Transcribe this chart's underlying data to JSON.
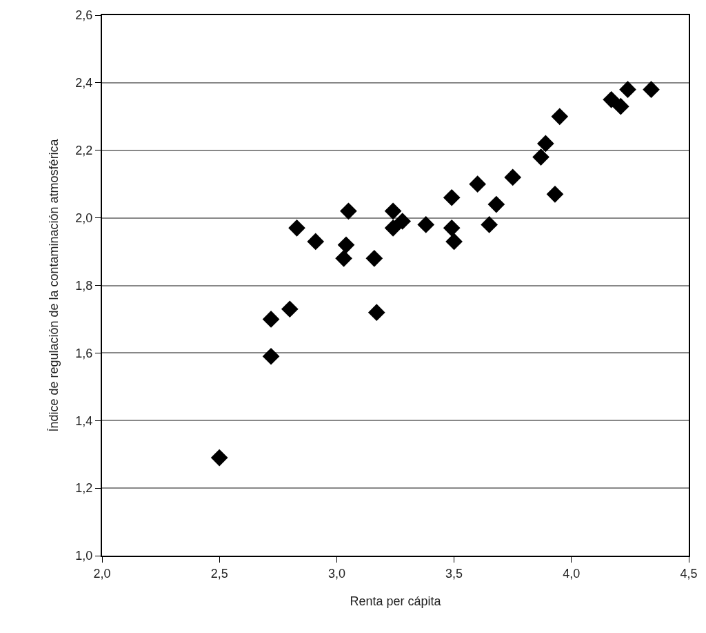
{
  "chart_data": {
    "type": "scatter",
    "xlabel": "Renta per cápita",
    "ylabel": "Índice de regulación de la contaminación atmosférica",
    "x": [
      2.5,
      2.72,
      2.72,
      2.8,
      2.83,
      2.91,
      3.03,
      3.04,
      3.05,
      3.16,
      3.17,
      3.24,
      3.24,
      3.28,
      3.38,
      3.49,
      3.49,
      3.5,
      3.6,
      3.65,
      3.68,
      3.75,
      3.87,
      3.89,
      3.93,
      3.95,
      4.17,
      4.21,
      4.24,
      4.34
    ],
    "values": [
      1.29,
      1.7,
      1.59,
      1.73,
      1.97,
      1.93,
      1.88,
      1.92,
      2.02,
      1.88,
      1.72,
      2.02,
      1.97,
      1.99,
      1.98,
      2.06,
      1.97,
      1.93,
      2.1,
      1.98,
      2.04,
      2.12,
      2.18,
      2.22,
      2.07,
      2.3,
      2.35,
      2.33,
      2.38,
      2.38
    ],
    "color": "#000000",
    "marker": "diamond",
    "xlim": [
      2.0,
      4.5
    ],
    "xticks": [
      {
        "value": 2.0,
        "label": "2,0"
      },
      {
        "value": 2.5,
        "label": "2,5"
      },
      {
        "value": 3.0,
        "label": "3,0"
      },
      {
        "value": 3.5,
        "label": "3,5"
      },
      {
        "value": 4.0,
        "label": "4,0"
      },
      {
        "value": 4.5,
        "label": "4,5"
      }
    ],
    "ylim": [
      1.0,
      2.6
    ],
    "yticks": [
      {
        "value": 1.0,
        "label": "1,0"
      },
      {
        "value": 1.2,
        "label": "1,2"
      },
      {
        "value": 1.4,
        "label": "1,4"
      },
      {
        "value": 1.6,
        "label": "1,6"
      },
      {
        "value": 1.8,
        "label": "1,8"
      },
      {
        "value": 2.0,
        "label": "2,0"
      },
      {
        "value": 2.2,
        "label": "2,2"
      },
      {
        "value": 2.4,
        "label": "2,4"
      },
      {
        "value": 2.6,
        "label": "2,6"
      }
    ],
    "grid": "y"
  }
}
